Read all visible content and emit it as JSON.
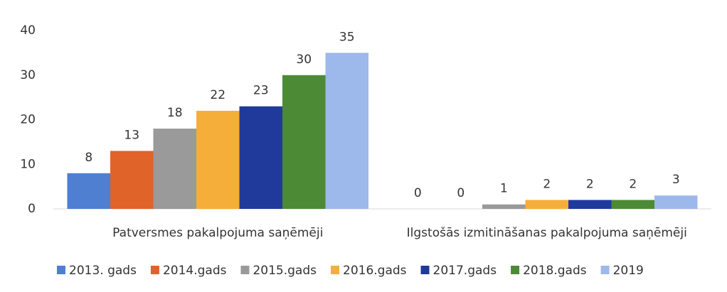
{
  "chart_data": {
    "type": "bar",
    "categories": [
      "Patversmes pakalpojuma saņēmēji",
      "Ilgstošās izmitināšanas pakalpojuma saņēmēji"
    ],
    "series": [
      {
        "name": "2013. gads",
        "color": "#4e7fd1",
        "values": [
          8,
          0
        ]
      },
      {
        "name": "2014.gads",
        "color": "#e0632a",
        "values": [
          13,
          0
        ]
      },
      {
        "name": "2015.gads",
        "color": "#9a9a9a",
        "values": [
          18,
          1
        ]
      },
      {
        "name": "2016.gads",
        "color": "#f5ae3a",
        "values": [
          22,
          2
        ]
      },
      {
        "name": "2017.gads",
        "color": "#1f3a9a",
        "values": [
          23,
          2
        ]
      },
      {
        "name": "2018.gads",
        "color": "#4d8a35",
        "values": [
          30,
          2
        ]
      },
      {
        "name": "2019",
        "color": "#9db8ea",
        "values": [
          35,
          3
        ]
      }
    ],
    "ylim": [
      0,
      40
    ],
    "yticks": [
      0,
      10,
      20,
      30,
      40
    ],
    "grid": false,
    "legend": "bottom"
  }
}
